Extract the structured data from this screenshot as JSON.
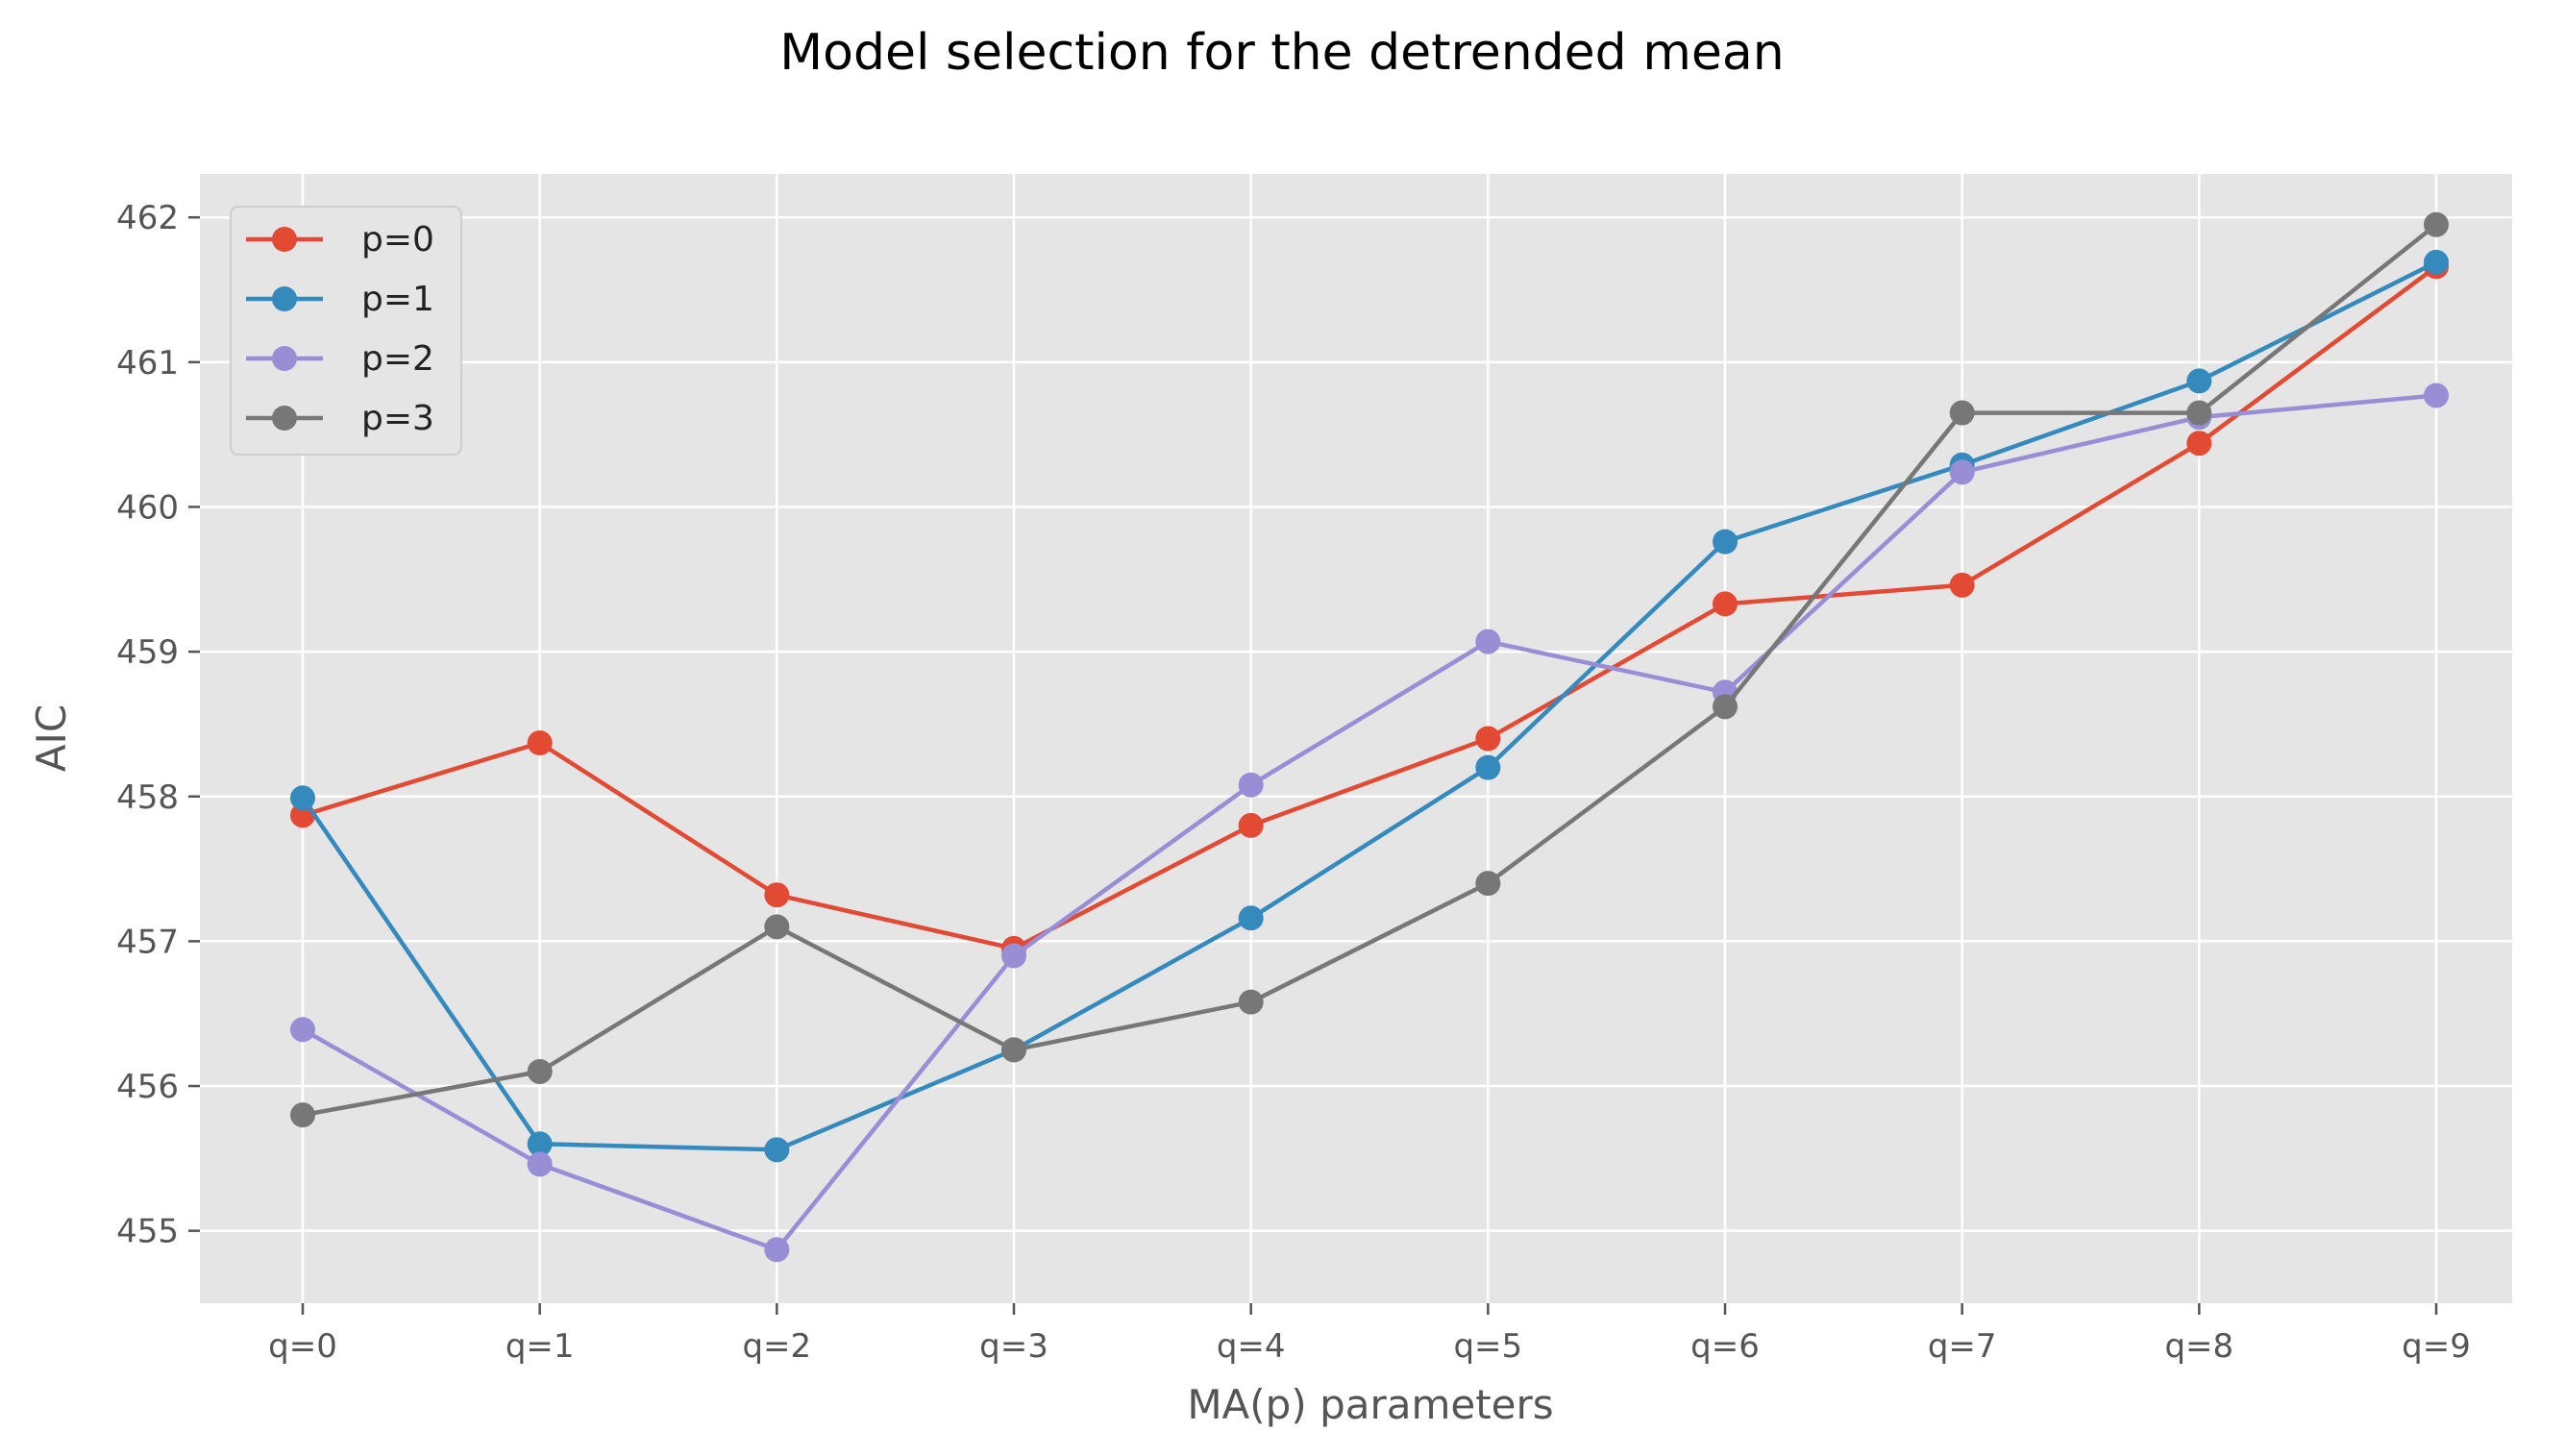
{
  "chart_data": {
    "type": "line",
    "title": "Model selection for the detrended mean",
    "xlabel": "MA(p) parameters",
    "ylabel": "AIC",
    "categories": [
      "q=0",
      "q=1",
      "q=2",
      "q=3",
      "q=4",
      "q=5",
      "q=6",
      "q=7",
      "q=8",
      "q=9"
    ],
    "yticks": [
      455,
      456,
      457,
      458,
      459,
      460,
      461,
      462
    ],
    "ylim": [
      454.5,
      462.3
    ],
    "grid": true,
    "legend_position": "top-left",
    "series": [
      {
        "name": "p=0",
        "color": "#E24A33",
        "values": [
          457.87,
          458.37,
          457.32,
          456.95,
          457.8,
          458.4,
          459.33,
          459.46,
          460.44,
          461.66
        ]
      },
      {
        "name": "p=1",
        "color": "#348ABD",
        "values": [
          457.99,
          455.6,
          455.56,
          456.25,
          457.16,
          458.2,
          459.76,
          460.29,
          460.87,
          461.69
        ]
      },
      {
        "name": "p=2",
        "color": "#988ED5",
        "values": [
          456.39,
          455.46,
          454.87,
          456.9,
          458.08,
          459.07,
          458.72,
          460.24,
          460.62,
          460.77
        ]
      },
      {
        "name": "p=3",
        "color": "#777777",
        "values": [
          455.8,
          456.1,
          457.1,
          456.25,
          456.58,
          457.4,
          458.62,
          460.65,
          460.65,
          461.95
        ]
      }
    ]
  }
}
